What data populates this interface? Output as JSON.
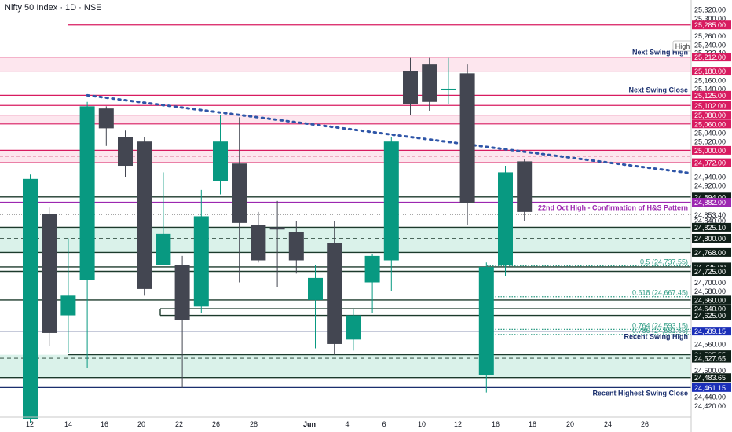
{
  "header": {
    "title": "Nifty 50 Index · 1D · NSE"
  },
  "colors": {
    "up": "#089981",
    "down": "#434651",
    "red": "#d81b60",
    "redFill": "#fde6ee",
    "green": "#0b6b52",
    "greenFill": "#daf2ea",
    "navy": "#1a2f6e",
    "purple": "#9c27b0",
    "trend": "#2f56a8",
    "fib": "#2e9c84"
  },
  "chart_data": {
    "type": "candlestick",
    "title": "Nifty 50 Index · 1D · NSE",
    "ylim": [
      24400,
      25340
    ],
    "y_ticks": [
      24420,
      24440,
      24460,
      24480,
      24500,
      24520,
      24540,
      24560,
      24580,
      24600,
      24620,
      24640,
      24660,
      24680,
      24700,
      24720,
      24740,
      24760,
      24780,
      24800,
      24820,
      24840,
      24860,
      24880,
      24900,
      24920,
      24940,
      24960,
      24980,
      25000,
      25020,
      25040,
      25060,
      25080,
      25100,
      25120,
      25140,
      25160,
      25180,
      25200,
      25220,
      25240,
      25260,
      25280,
      25300,
      25320
    ],
    "axis_labels": [
      "24,420.00",
      "24,440.00",
      "24,460.00",
      "24,480.00",
      "24,500.00",
      "24,520.00",
      "24,540.00",
      "24,560.00",
      "24,580.00",
      "24,600.00",
      "24,620.00",
      "24,640.00",
      "24,660.00",
      "24,680.00",
      "24,700.00",
      "24,720.00",
      "24,740.00",
      "24,760.00",
      "24,780.00",
      "24,800.00",
      "24,820.00",
      "24,840.00",
      "24,860.00",
      "24,880.00",
      "24,900.00",
      "24,920.00",
      "24,940.00",
      "24,960.00",
      "24,980.00",
      "25,000.00",
      "25,020.00",
      "25,040.00",
      "25,060.00",
      "25,080.00",
      "25,100.00",
      "25,120.00",
      "25,140.00",
      "25,160.00",
      "25,180.00",
      "25,200.00",
      "25,220.00",
      "25,240.00",
      "25,260.00",
      "25,280.00",
      "25,300.00",
      "25,320.00"
    ],
    "x_ticks": [
      "12",
      "14",
      "16",
      "20",
      "22",
      "26",
      "28",
      "Jun",
      "4",
      "6",
      "10",
      "12",
      "16",
      "18",
      "20",
      "24",
      "26"
    ],
    "candles": [
      {
        "o": 24390,
        "h": 24945,
        "l": 24380,
        "c": 24935
      },
      {
        "o": 24855,
        "h": 24870,
        "l": 24555,
        "c": 24585
      },
      {
        "o": 24625,
        "h": 24800,
        "l": 24540,
        "c": 24670
      },
      {
        "o": 24705,
        "h": 25110,
        "l": 24505,
        "c": 25100
      },
      {
        "o": 25095,
        "h": 25100,
        "l": 25010,
        "c": 25050
      },
      {
        "o": 25030,
        "h": 25045,
        "l": 24940,
        "c": 24965
      },
      {
        "o": 25020,
        "h": 25030,
        "l": 24670,
        "c": 24685
      },
      {
        "o": 24740,
        "h": 24950,
        "l": 24740,
        "c": 24810
      },
      {
        "o": 24740,
        "h": 24760,
        "l": 24460,
        "c": 24615
      },
      {
        "o": 24645,
        "h": 24910,
        "l": 24630,
        "c": 24850
      },
      {
        "o": 24930,
        "h": 25080,
        "l": 24900,
        "c": 25020
      },
      {
        "o": 24970,
        "h": 25075,
        "l": 24700,
        "c": 24835
      },
      {
        "o": 24830,
        "h": 24860,
        "l": 24745,
        "c": 24750
      },
      {
        "o": 24825,
        "h": 24885,
        "l": 24690,
        "c": 24820
      },
      {
        "o": 24815,
        "h": 24840,
        "l": 24720,
        "c": 24750
      },
      {
        "o": 24660,
        "h": 24740,
        "l": 24550,
        "c": 24710
      },
      {
        "o": 24790,
        "h": 24840,
        "l": 24535,
        "c": 24560
      },
      {
        "o": 24570,
        "h": 24640,
        "l": 24545,
        "c": 24625
      },
      {
        "o": 24700,
        "h": 24765,
        "l": 24630,
        "c": 24760
      },
      {
        "o": 24750,
        "h": 25030,
        "l": 24680,
        "c": 25020
      },
      {
        "o": 25180,
        "h": 25210,
        "l": 25080,
        "c": 25105
      },
      {
        "o": 25195,
        "h": 25210,
        "l": 25090,
        "c": 25110
      },
      {
        "o": 25140,
        "h": 25210,
        "l": 25105,
        "c": 25140
      },
      {
        "o": 25175,
        "h": 25195,
        "l": 24830,
        "c": 24880
      },
      {
        "o": 24490,
        "h": 24745,
        "l": 24450,
        "c": 24735
      },
      {
        "o": 24740,
        "h": 24965,
        "l": 24715,
        "c": 24950
      },
      {
        "o": 24975,
        "h": 24980,
        "l": 24840,
        "c": 24860
      }
    ],
    "levels": [
      {
        "value": 25285.0,
        "label": "25,285.00",
        "color": "red"
      },
      {
        "value": 25222.4,
        "label": "25,222.40",
        "color": "plain"
      },
      {
        "value": 25212.0,
        "label": "25,212.00",
        "color": "red"
      },
      {
        "value": 25180.0,
        "label": "25,180.00",
        "color": "red"
      },
      {
        "value": 25125.0,
        "label": "25,125.00",
        "color": "red"
      },
      {
        "value": 25102.0,
        "label": "25,102.00",
        "color": "red"
      },
      {
        "value": 25080.0,
        "label": "25,080.00",
        "color": "red"
      },
      {
        "value": 25060.0,
        "label": "25,060.00",
        "color": "red"
      },
      {
        "value": 25000.0,
        "label": "25,000.00",
        "color": "red"
      },
      {
        "value": 24972.0,
        "label": "24,972.00",
        "color": "red"
      },
      {
        "value": 24894.0,
        "label": "24,894.00",
        "color": "green"
      },
      {
        "value": 24882.0,
        "label": "24,882.00",
        "color": "purple"
      },
      {
        "value": 24853.4,
        "label": "24,853.40",
        "color": "plain"
      },
      {
        "value": 24825.1,
        "label": "24,825.10",
        "color": "green"
      },
      {
        "value": 24800.0,
        "label": "24,800.00",
        "color": "green"
      },
      {
        "value": 24768.0,
        "label": "24,768.00",
        "color": "green"
      },
      {
        "value": 24735.0,
        "label": "24,735.00",
        "color": "green"
      },
      {
        "value": 24725.0,
        "label": "24,725.00",
        "color": "green"
      },
      {
        "value": 24660.0,
        "label": "24,660.00",
        "color": "green"
      },
      {
        "value": 24640.0,
        "label": "24,640.00",
        "color": "green"
      },
      {
        "value": 24625.0,
        "label": "24,625.00",
        "color": "green"
      },
      {
        "value": 24589.15,
        "label": "24,589.15",
        "color": "navy"
      },
      {
        "value": 24535.55,
        "label": "24,535.55",
        "color": "green"
      },
      {
        "value": 24527.65,
        "label": "24,527.65",
        "color": "green"
      },
      {
        "value": 24483.65,
        "label": "24,483.65",
        "color": "green"
      },
      {
        "value": 24461.15,
        "label": "24,461.15",
        "color": "navy"
      }
    ],
    "annotations": {
      "next_swing_high": "Next Swing High",
      "next_swing_close": "Next Swing Close",
      "hs_confirmation": "22nd Oct High - Confirmation of H&S Pattern",
      "recent_swing_high": "Recent Swing High",
      "recent_highest_swing_close": "Recent Highest Swing Close",
      "high_tag": "High",
      "fib_05": "0.5 (24,737.55)",
      "fib_0618": "0.618 (24,667.45)",
      "fib_0764": "0.764 (24,593.15)",
      "fib_0786": "0.786 (24,581.65)"
    }
  }
}
